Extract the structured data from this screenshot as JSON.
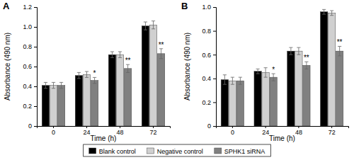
{
  "chart_data": [
    {
      "type": "bar",
      "title": "A",
      "xlabel": "Time (h)",
      "ylabel": "Absorbance (490 nm)",
      "categories": [
        "0",
        "24",
        "48",
        "72"
      ],
      "series": [
        {
          "name": "Blank control",
          "color": "#000000",
          "values": [
            0.41,
            0.51,
            0.72,
            1.01
          ],
          "errors": [
            0.03,
            0.03,
            0.03,
            0.04
          ]
        },
        {
          "name": "Negative control",
          "color": "#d0d0d0",
          "values": [
            0.41,
            0.52,
            0.72,
            1.02
          ],
          "errors": [
            0.03,
            0.03,
            0.03,
            0.04
          ]
        },
        {
          "name": "SPHK1 siRNA",
          "color": "#808080",
          "values": [
            0.41,
            0.46,
            0.58,
            0.73
          ],
          "errors": [
            0.03,
            0.03,
            0.04,
            0.05
          ]
        }
      ],
      "ylim": [
        0,
        1.2
      ],
      "yticks": [
        0,
        0.2,
        0.4,
        0.6,
        0.8,
        {
          "value": 1,
          "label": "1.0"
        },
        1.2
      ],
      "annotations": [
        {
          "text": "*",
          "x": "24",
          "series": "SPHK1 siRNA"
        },
        {
          "text": "**",
          "x": "48",
          "series": "SPHK1 siRNA"
        },
        {
          "text": "**",
          "x": "72",
          "series": "SPHK1 siRNA"
        }
      ],
      "legend": "bottom"
    },
    {
      "type": "bar",
      "title": "B",
      "xlabel": "Time (h)",
      "ylabel": "Absorbance (490 nm)",
      "categories": [
        "0",
        "24",
        "48",
        "72"
      ],
      "series": [
        {
          "name": "Blank control",
          "color": "#000000",
          "values": [
            0.39,
            0.46,
            0.63,
            0.96
          ],
          "errors": [
            0.04,
            0.02,
            0.03,
            0.02
          ]
        },
        {
          "name": "Negative control",
          "color": "#d0d0d0",
          "values": [
            0.38,
            0.45,
            0.63,
            0.95
          ],
          "errors": [
            0.03,
            0.04,
            0.03,
            0.02
          ]
        },
        {
          "name": "SPHK1 siRNA",
          "color": "#808080",
          "values": [
            0.38,
            0.41,
            0.51,
            0.63
          ],
          "errors": [
            0.03,
            0.03,
            0.03,
            0.04
          ]
        }
      ],
      "ylim": [
        0,
        1.0
      ],
      "yticks": [
        0,
        0.2,
        0.4,
        0.6,
        0.8,
        {
          "value": 1,
          "label": "1.0"
        }
      ],
      "annotations": [
        {
          "text": "*",
          "x": "24",
          "series": "SPHK1 siRNA"
        },
        {
          "text": "**",
          "x": "48",
          "series": "SPHK1 siRNA"
        },
        {
          "text": "**",
          "x": "72",
          "series": "SPHK1 siRNA"
        }
      ]
    }
  ]
}
